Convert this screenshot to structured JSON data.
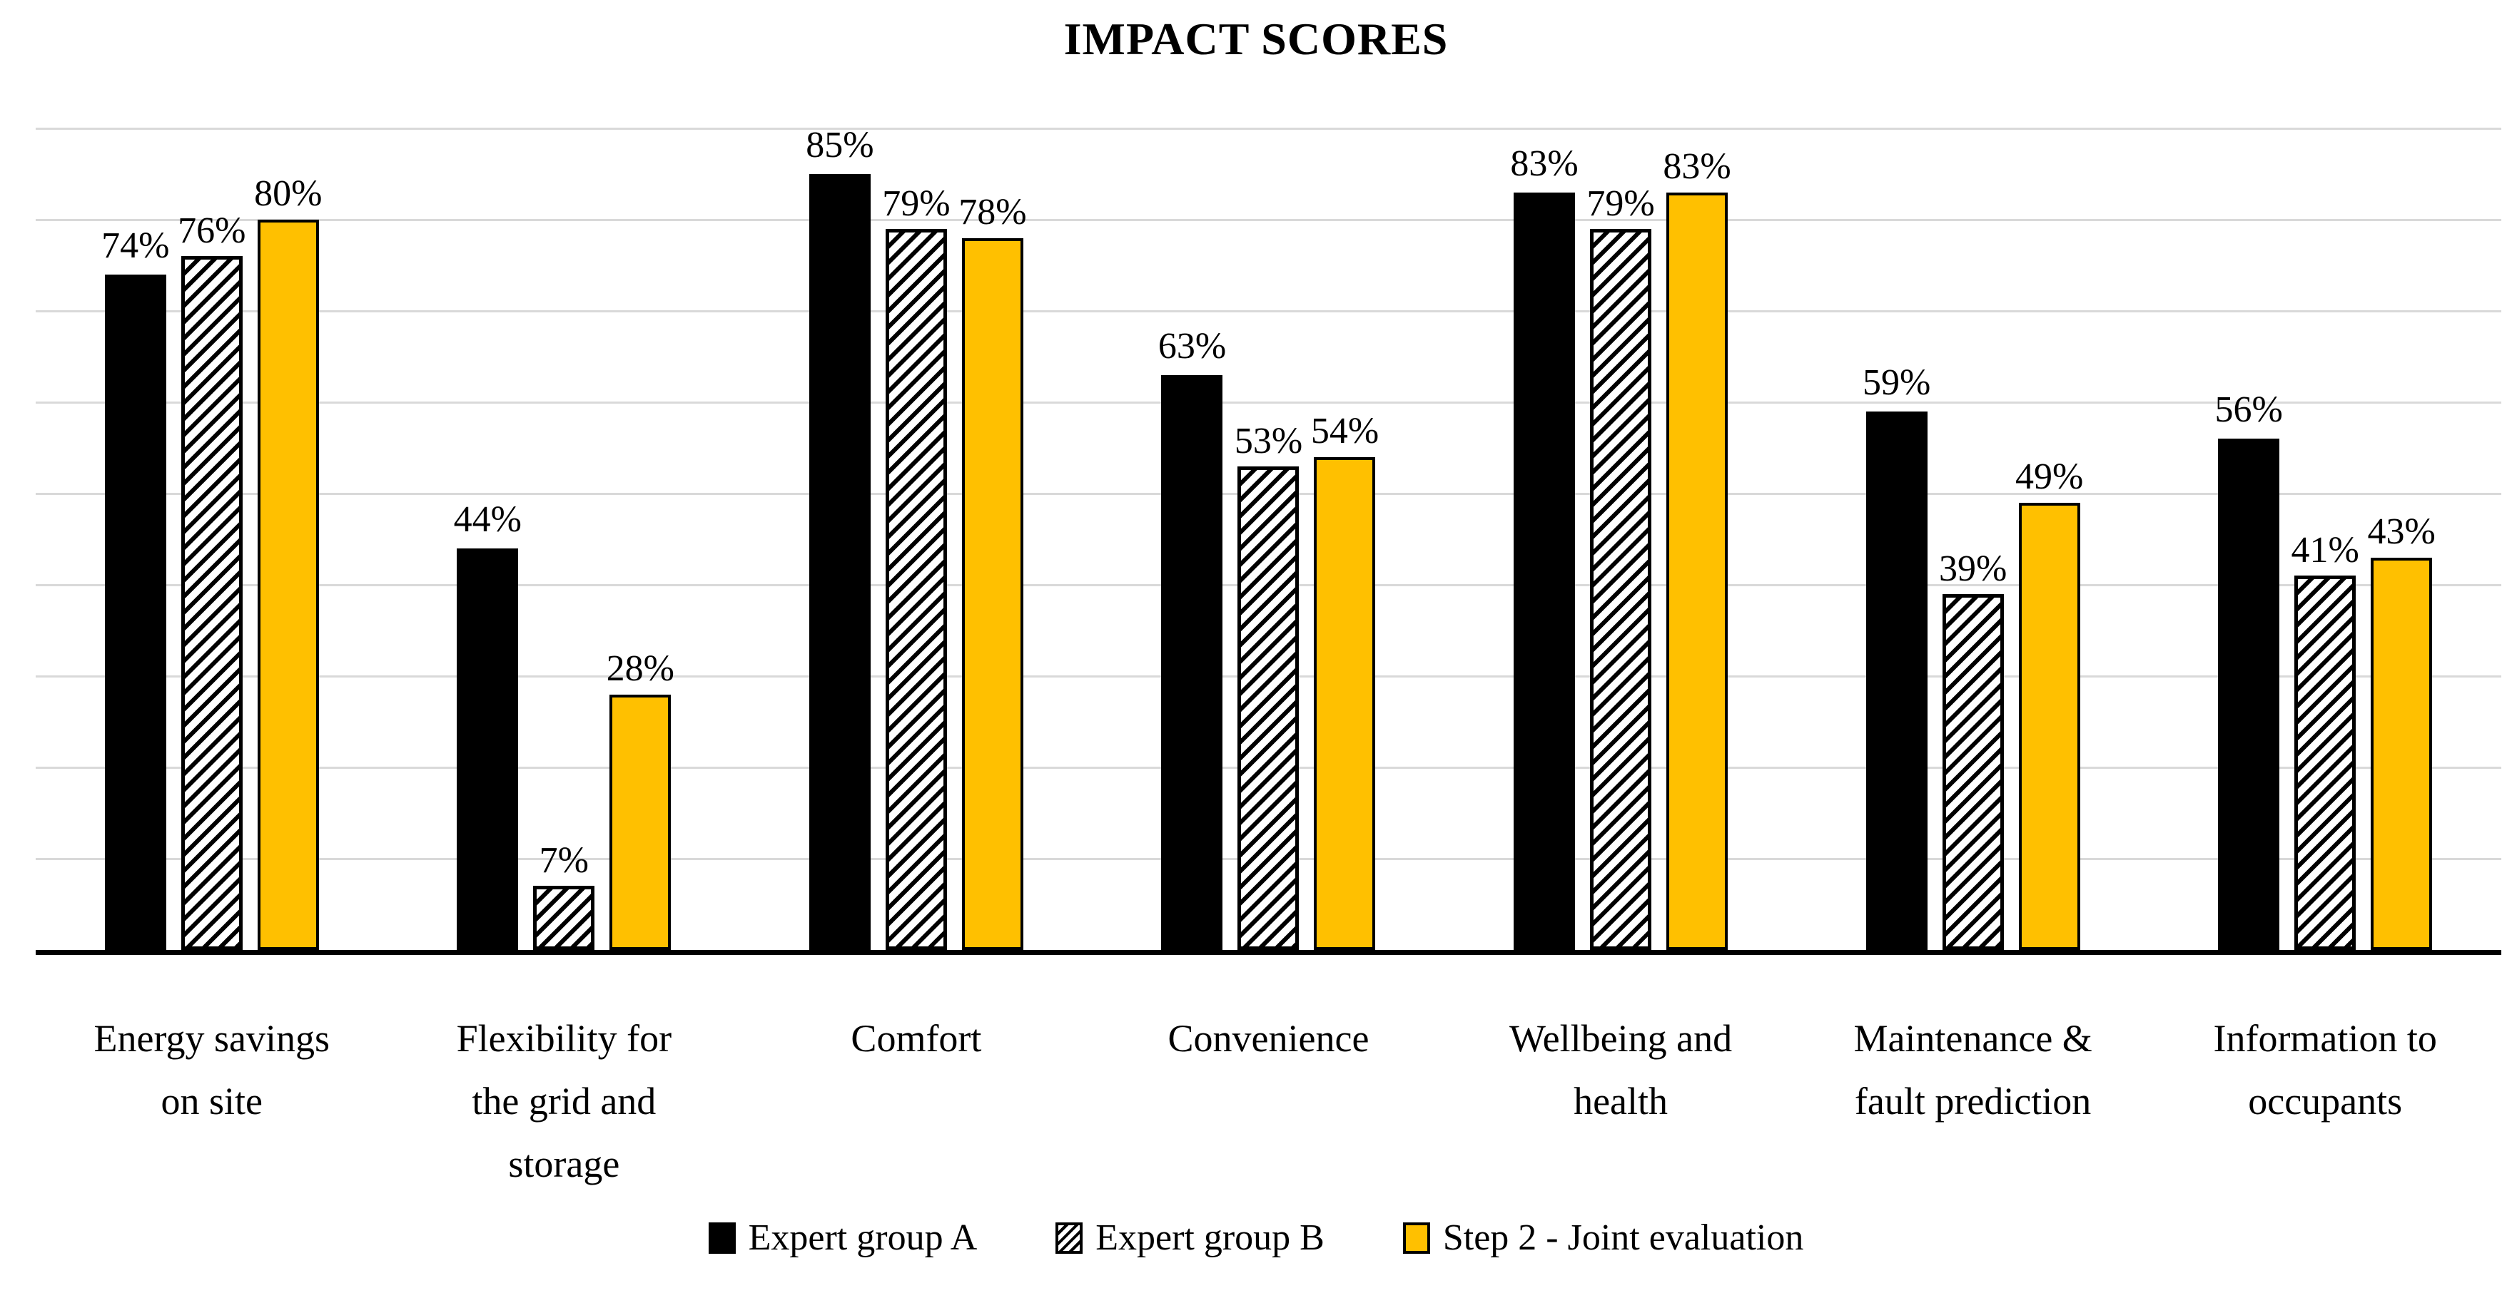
{
  "chart_data": {
    "type": "bar",
    "title": "IMPACT SCORES",
    "categories": [
      "Energy savings on site",
      "Flexibility for the grid and storage",
      "Comfort",
      "Convenience",
      "Wellbeing and health",
      "Maintenance & fault prediction",
      "Information to occupants"
    ],
    "category_label_lines": [
      [
        "Energy savings",
        "on site"
      ],
      [
        "Flexibility for",
        "the grid and",
        "storage"
      ],
      [
        "Comfort"
      ],
      [
        "Convenience"
      ],
      [
        "Wellbeing and",
        "health"
      ],
      [
        "Maintenance &",
        "fault prediction"
      ],
      [
        "Information to",
        "occupants"
      ]
    ],
    "series": [
      {
        "name": "Expert group A",
        "pattern": "solid",
        "color": "#000000",
        "border": "none",
        "values": [
          74,
          44,
          85,
          63,
          83,
          59,
          56
        ]
      },
      {
        "name": "Expert group B",
        "pattern": "hatch",
        "color": "#000000",
        "border": "#000000",
        "values": [
          76,
          7,
          79,
          53,
          79,
          39,
          41
        ]
      },
      {
        "name": "Step 2 - Joint evaluation",
        "pattern": "solid",
        "color": "#FFC000",
        "border": "#000000",
        "values": [
          80,
          28,
          78,
          54,
          83,
          49,
          43
        ]
      }
    ],
    "data_labels": true,
    "data_label_suffix": "%",
    "ylabel": "",
    "xlabel": "",
    "ylim": [
      0,
      90
    ],
    "gridline_interval": 10,
    "gridline_color": "#D9D9D9",
    "axis_line_color": "#000000",
    "grid": "horizontal",
    "legend_position": "bottom"
  }
}
